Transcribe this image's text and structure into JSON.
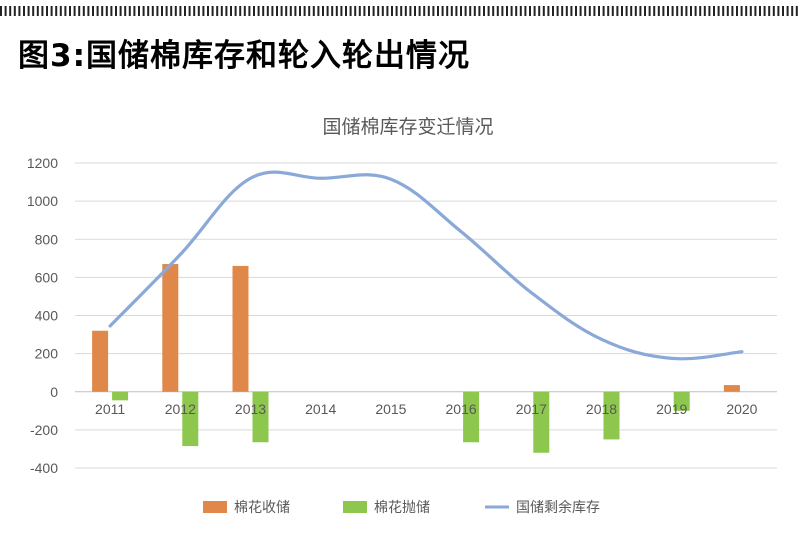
{
  "header": {
    "title": "图3:国储棉库存和轮入轮出情况"
  },
  "chart_data": {
    "type": "bar",
    "title": "国储棉库存变迁情况",
    "categories": [
      "2011",
      "2012",
      "2013",
      "2014",
      "2015",
      "2016",
      "2017",
      "2018",
      "2019",
      "2020"
    ],
    "ylim": [
      -400,
      1200
    ],
    "yticks": [
      1200,
      1000,
      800,
      600,
      400,
      200,
      0,
      -200,
      -400
    ],
    "grid": true,
    "legend_position": "bottom",
    "series": [
      {
        "name": "棉花收储",
        "type": "bar",
        "color": "#E0884A",
        "values": [
          320,
          670,
          660,
          0,
          0,
          0,
          0,
          0,
          0,
          35
        ]
      },
      {
        "name": "棉花抛储",
        "type": "bar",
        "color": "#8DC74E",
        "values": [
          -45,
          -285,
          -265,
          0,
          0,
          -265,
          -320,
          -250,
          -100,
          0
        ]
      },
      {
        "name": "国储剩余库存",
        "type": "line",
        "color": "#8AA8D8",
        "values": [
          345,
          720,
          1120,
          1120,
          1115,
          840,
          520,
          275,
          175,
          210
        ]
      }
    ]
  }
}
